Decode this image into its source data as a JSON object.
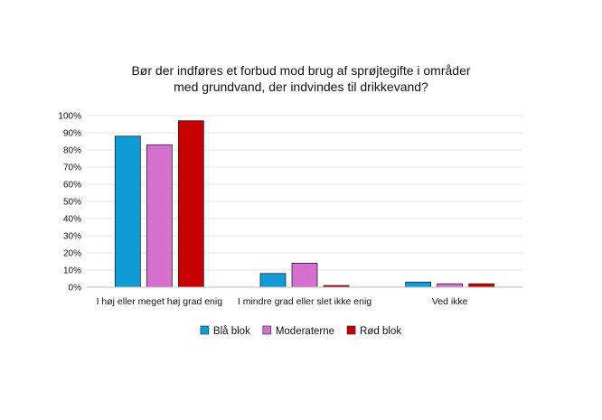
{
  "chart_data": {
    "type": "bar",
    "title_lines": [
      "Bør der indføres et forbud mod brug af sprøjtegifte i områder",
      "med grundvand, der indvindes til drikkevand?"
    ],
    "categories": [
      "I høj eller meget høj grad enig",
      "I mindre grad eller slet ikke enig",
      "Ved ikke"
    ],
    "series": [
      {
        "name": "Blå blok",
        "color": "#0F9CD6",
        "values": [
          88,
          8,
          3
        ]
      },
      {
        "name": "Moderaterne",
        "color": "#D570CC",
        "values": [
          83,
          14,
          2
        ]
      },
      {
        "name": "Rød blok",
        "color": "#C60000",
        "values": [
          97,
          1,
          2
        ]
      }
    ],
    "ylim": [
      0,
      100
    ],
    "yticks": [
      0,
      10,
      20,
      30,
      40,
      50,
      60,
      70,
      80,
      90,
      100
    ],
    "ytick_labels": [
      "0%",
      "10%",
      "20%",
      "30%",
      "40%",
      "50%",
      "60%",
      "70%",
      "80%",
      "90%",
      "100%"
    ],
    "grid": true,
    "legend_position": "bottom",
    "xlabel": "",
    "ylabel": ""
  }
}
